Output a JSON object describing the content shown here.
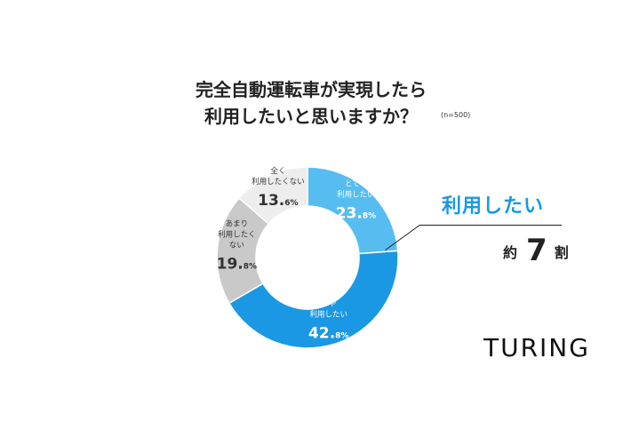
{
  "title_line1": "完全自動運転車が実現したら",
  "title_line2": "利用したいと思いますか？",
  "sample_note": "(n=500)",
  "highlight": {
    "label": "利用したい",
    "approx_prefix": "約",
    "value": "7",
    "suffix": "割"
  },
  "logo_text": "TURING",
  "colors": {
    "light_blue": "#57bdf0",
    "blue": "#1a98e3",
    "gray": "#c9c9c9",
    "light_gray": "#ededed"
  },
  "chart_data": {
    "type": "pie",
    "donut": true,
    "categories": [
      "とても利用したい",
      "やや利用したい",
      "あまり利用したくない",
      "全く利用したくない"
    ],
    "values": [
      23.8,
      42.8,
      19.8,
      13.6
    ],
    "unit": "%",
    "slices": [
      {
        "label_lines": [
          "とても",
          "利用したい"
        ],
        "value_main": "23.",
        "value_sub": "8%",
        "value": 23.8,
        "color": "#57bdf0",
        "text_color": "#ffffff"
      },
      {
        "label_lines": [
          "やや",
          "利用したい"
        ],
        "value_main": "42.",
        "value_sub": "8%",
        "value": 42.8,
        "color": "#1a98e3",
        "text_color": "#ffffff"
      },
      {
        "label_lines": [
          "あまり",
          "利用したく",
          "ない"
        ],
        "value_main": "19.",
        "value_sub": "8%",
        "value": 19.8,
        "color": "#c9c9c9",
        "text_color": "#333333"
      },
      {
        "label_lines": [
          "全く",
          "利用したくない"
        ],
        "value_main": "13.",
        "value_sub": "6%",
        "value": 13.6,
        "color": "#ededed",
        "text_color": "#333333"
      }
    ]
  }
}
